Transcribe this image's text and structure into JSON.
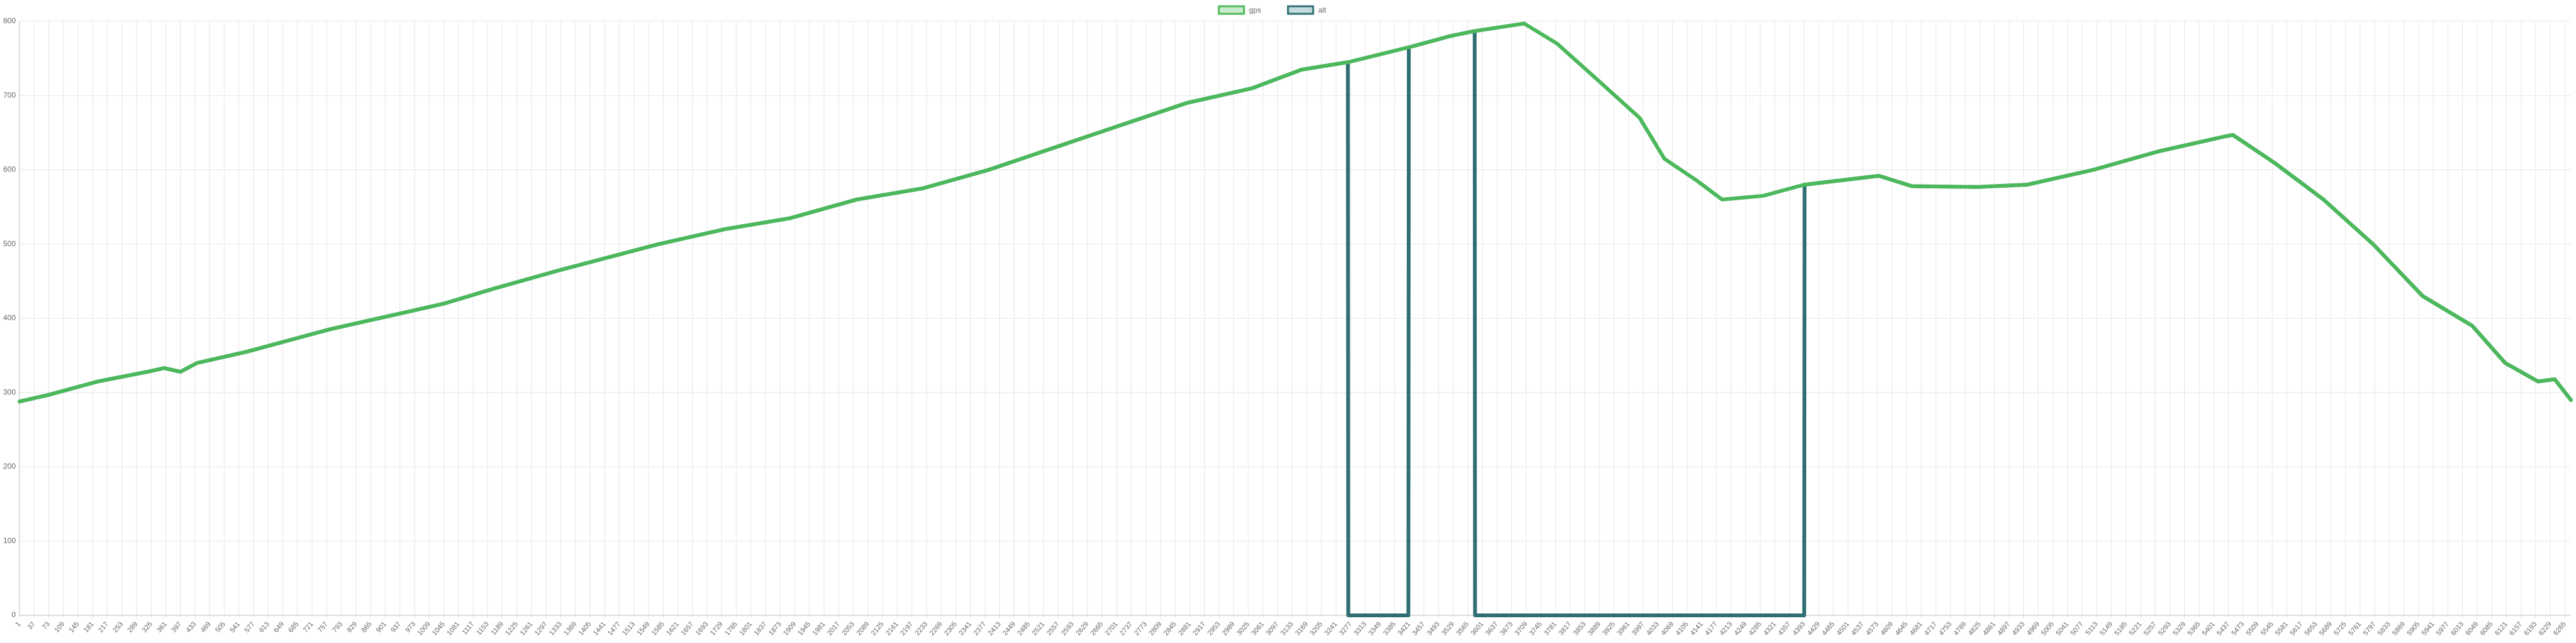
{
  "chart_data": {
    "type": "line",
    "x": [
      1,
      73,
      194,
      316,
      357,
      397,
      438,
      560,
      763,
      925,
      1047,
      1168,
      1331,
      1574,
      1736,
      1898,
      2061,
      2223,
      2386,
      2548,
      2710,
      2873,
      3035,
      3156,
      3270,
      3271,
      3419,
      3420,
      3521,
      3582,
      3583,
      3704,
      3785,
      3887,
      3988,
      4049,
      4130,
      4191,
      4292,
      4393,
      4394,
      4577,
      4658,
      4820,
      4942,
      5104,
      5266,
      5428,
      5448,
      5549,
      5671,
      5793,
      5915,
      6037,
      6118,
      6199,
      6240,
      6280
    ],
    "series": [
      {
        "name": "gps",
        "color": "#4cb85c",
        "fill": "#c9ebcd",
        "values": [
          288,
          297,
          315,
          328,
          333,
          328,
          340,
          355,
          385,
          405,
          420,
          440,
          465,
          500,
          520,
          535,
          560,
          575,
          600,
          630,
          660,
          690,
          710,
          735,
          745,
          745,
          765,
          765,
          780,
          787,
          787,
          797,
          770,
          720,
          670,
          615,
          585,
          560,
          565,
          580,
          580,
          592,
          578,
          577,
          580,
          600,
          625,
          645,
          647,
          610,
          560,
          500,
          430,
          390,
          340,
          315,
          318,
          290
        ]
      },
      {
        "name": "alt",
        "color": "#2f6f73",
        "fill": "#c3dcdd",
        "values": [
          288,
          297,
          315,
          328,
          333,
          328,
          340,
          355,
          385,
          405,
          420,
          440,
          465,
          500,
          520,
          535,
          560,
          575,
          600,
          630,
          660,
          690,
          710,
          735,
          745,
          0,
          0,
          765,
          780,
          787,
          0,
          0,
          0,
          0,
          0,
          0,
          0,
          0,
          0,
          0,
          580,
          592,
          578,
          577,
          580,
          600,
          625,
          645,
          647,
          610,
          560,
          500,
          430,
          390,
          340,
          315,
          318,
          290
        ]
      }
    ],
    "xlim": [
      1,
      6280
    ],
    "xticks": [
      1,
      37,
      73,
      109,
      145,
      181,
      217,
      253,
      289,
      325,
      361,
      397,
      433,
      469,
      505,
      541,
      577,
      613,
      649,
      685,
      721,
      757,
      793,
      829,
      865,
      901,
      937,
      973,
      1009,
      1045,
      1081,
      1117,
      1153,
      1189,
      1225,
      1261,
      1297,
      1333,
      1369,
      1405,
      1441,
      1477,
      1513,
      1549,
      1585,
      1621,
      1657,
      1693,
      1729,
      1765,
      1801,
      1837,
      1873,
      1909,
      1945,
      1981,
      2017,
      2053,
      2089,
      2125,
      2161,
      2197,
      2233,
      2269,
      2305,
      2341,
      2377,
      2413,
      2449,
      2485,
      2521,
      2557,
      2593,
      2629,
      2665,
      2701,
      2737,
      2773,
      2809,
      2845,
      2881,
      2917,
      2953,
      2989,
      3025,
      3061,
      3097,
      3133,
      3169,
      3205,
      3241,
      3277,
      3313,
      3349,
      3385,
      3421,
      3457,
      3493,
      3529,
      3565,
      3601,
      3637,
      3673,
      3709,
      3745,
      3781,
      3817,
      3853,
      3889,
      3925,
      3961,
      3997,
      4033,
      4069,
      4105,
      4141,
      4177,
      4213,
      4249,
      4285,
      4321,
      4357,
      4393,
      4429,
      4465,
      4501,
      4537,
      4573,
      4609,
      4645,
      4681,
      4717,
      4753,
      4789,
      4825,
      4861,
      4897,
      4933,
      4969,
      5005,
      5041,
      5077,
      5113,
      5149,
      5185,
      5221,
      5257,
      5293,
      5329,
      5365,
      5401,
      5437,
      5473,
      5509,
      5545,
      5581,
      5617,
      5653,
      5689,
      5725,
      5761,
      5797,
      5833,
      5869,
      5905,
      5941,
      5977,
      6013,
      6049,
      6085,
      6121,
      6157,
      6193,
      6229,
      6265
    ],
    "ylim": [
      0,
      800
    ],
    "yticks": [
      0,
      100,
      200,
      300,
      400,
      500,
      600,
      700,
      800
    ],
    "grid": true
  }
}
